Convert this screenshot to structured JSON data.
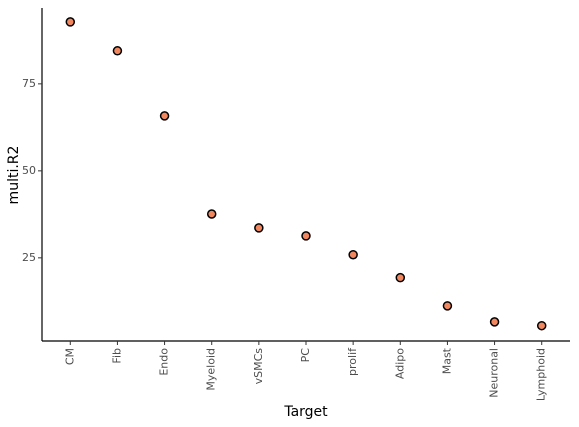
{
  "chart_data": {
    "type": "scatter",
    "x_label": "Target",
    "y_label": "multi.R2",
    "categories": [
      "CM",
      "Fib",
      "Endo",
      "Myeloid",
      "vSMCs",
      "PC",
      "prolif",
      "Adipo",
      "Mast",
      "Neuronal",
      "Lymphoid"
    ],
    "values": [
      92.8,
      84.5,
      65.8,
      37.6,
      33.6,
      31.3,
      25.9,
      19.3,
      11.2,
      6.6,
      5.5
    ],
    "color": "#f0875f",
    "ylim": [
      1.1,
      96.8
    ],
    "yticks": [
      25,
      50,
      75
    ],
    "grid": false
  }
}
